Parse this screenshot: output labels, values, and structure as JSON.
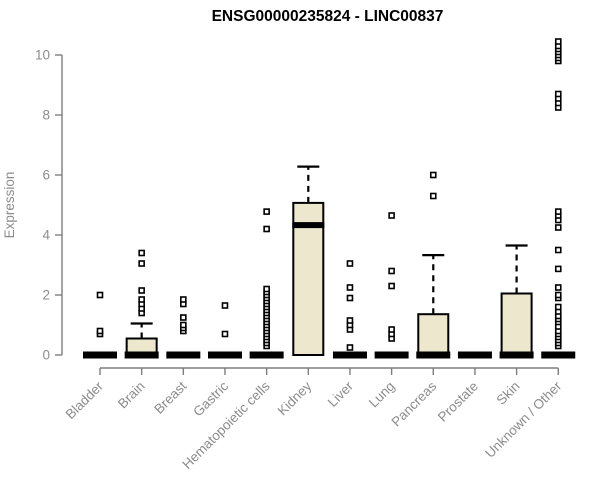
{
  "title": "ENSG00000235824 - LINC00837",
  "chart_data": {
    "type": "boxplot",
    "title": "ENSG00000235824 - LINC00837",
    "ylabel": "Expression",
    "xlabel": "",
    "ylim": [
      0,
      10.5
    ],
    "yticks": [
      0,
      2,
      4,
      6,
      8,
      10
    ],
    "grid": false,
    "legend_position": "none",
    "colors": {
      "box_fill": "#ede7ce",
      "box_stroke": "#000000",
      "median": "#000000",
      "outlier_fill": "#ffffff",
      "outlier_stroke": "#000000",
      "axis": "#7e7e7e",
      "tick_text": "#8c8c8c",
      "title_text": "#000000"
    },
    "categories": [
      "Bladder",
      "Brain",
      "Breast",
      "Gastric",
      "Hematopoietic cells",
      "Kidney",
      "Liver",
      "Lung",
      "Pancreas",
      "Prostate",
      "Skin",
      "Unknown / Other"
    ],
    "series": [
      {
        "category": "Bladder",
        "q1": 0,
        "median": 0,
        "q3": 0,
        "whisker_high": 0,
        "outliers": [
          0.7,
          0.8,
          2.0
        ]
      },
      {
        "category": "Brain",
        "q1": 0,
        "median": 0,
        "q3": 0.55,
        "whisker_high": 1.05,
        "outliers": [
          1.4,
          1.55,
          1.7,
          1.85,
          2.15,
          3.05,
          3.4
        ]
      },
      {
        "category": "Breast",
        "q1": 0,
        "median": 0,
        "q3": 0,
        "whisker_high": 0,
        "outliers": [
          0.8,
          0.9,
          1.0,
          1.25,
          1.7,
          1.85
        ]
      },
      {
        "category": "Gastric",
        "q1": 0,
        "median": 0,
        "q3": 0,
        "whisker_high": 0,
        "outliers": [
          0.7,
          1.65
        ]
      },
      {
        "category": "Hematopoietic cells",
        "q1": 0,
        "median": 0,
        "q3": 0,
        "whisker_high": 0,
        "outliers": [
          0.3,
          0.4,
          0.5,
          0.6,
          0.7,
          0.8,
          0.9,
          1.0,
          1.1,
          1.2,
          1.3,
          1.4,
          1.5,
          1.6,
          1.7,
          1.8,
          1.9,
          2.0,
          2.1,
          2.2,
          4.2,
          4.78
        ]
      },
      {
        "category": "Kidney",
        "q1": 0,
        "median": 4.33,
        "q3": 5.07,
        "whisker_high": 6.28,
        "outliers": []
      },
      {
        "category": "Liver",
        "q1": 0,
        "median": 0,
        "q3": 0,
        "whisker_high": 0,
        "outliers": [
          0.25,
          0.85,
          1.0,
          1.15,
          1.9,
          2.25,
          3.05
        ]
      },
      {
        "category": "Lung",
        "q1": 0,
        "median": 0,
        "q3": 0,
        "whisker_high": 0,
        "outliers": [
          0.55,
          0.7,
          0.85,
          2.3,
          2.8,
          4.65
        ]
      },
      {
        "category": "Pancreas",
        "q1": 0,
        "median": 0,
        "q3": 1.36,
        "whisker_high": 3.33,
        "outliers": [
          5.3,
          6.0
        ]
      },
      {
        "category": "Prostate",
        "q1": 0,
        "median": 0,
        "q3": 0,
        "whisker_high": 0,
        "outliers": []
      },
      {
        "category": "Skin",
        "q1": 0,
        "median": 0,
        "q3": 2.05,
        "whisker_high": 3.65,
        "outliers": []
      },
      {
        "category": "Unknown / Other",
        "q1": 0,
        "median": 0,
        "q3": 0,
        "whisker_high": 0,
        "outliers": [
          0.3,
          0.4,
          0.5,
          0.6,
          0.7,
          0.8,
          0.95,
          1.1,
          1.2,
          1.3,
          1.45,
          1.6,
          1.9,
          2.0,
          2.25,
          2.87,
          3.5,
          4.25,
          4.5,
          4.65,
          4.78,
          8.25,
          8.4,
          8.55,
          8.7,
          9.8,
          9.9,
          10.0,
          10.1,
          10.2,
          10.3,
          10.45
        ]
      }
    ]
  }
}
